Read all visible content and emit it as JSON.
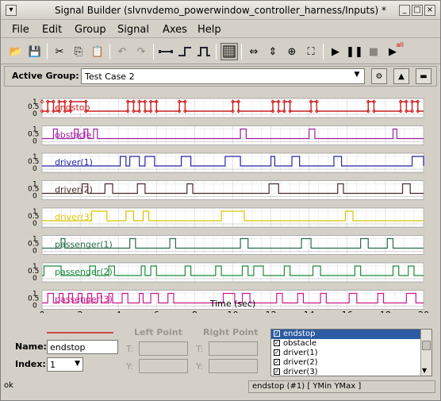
{
  "window": {
    "title": "Signal Builder (slvnvdemo_powerwindow_controller_harness/Inputs) *"
  },
  "menu": [
    "File",
    "Edit",
    "Group",
    "Signal",
    "Axes",
    "Help"
  ],
  "toolbar": {
    "icons": [
      "open-icon",
      "save-icon",
      "cut-icon",
      "copy-icon",
      "paste-icon",
      "undo-icon",
      "redo-icon",
      "segment-icon",
      "step-up-icon",
      "pulse-icon",
      "grid-icon",
      "zoom-x-icon",
      "zoom-y-icon",
      "zoom-icon",
      "fit-icon",
      "play-icon",
      "pause-icon",
      "stop-icon",
      "run-all-icon"
    ],
    "run_all_label": "all"
  },
  "group": {
    "label": "Active Group:",
    "value": "Test Case 2"
  },
  "plot": {
    "xlabel": "Time (sec)",
    "x_ticks": [
      "0",
      "2",
      "4",
      "6",
      "8",
      "10",
      "12",
      "14",
      "16",
      "18",
      "20"
    ],
    "signals": [
      {
        "name": "endstop",
        "color": "#cc1f1f",
        "steps": [
          [
            0,
            0
          ],
          [
            0.3,
            1
          ],
          [
            0.6,
            0
          ],
          [
            0.9,
            1
          ],
          [
            1.2,
            0
          ],
          [
            1.5,
            1
          ],
          [
            2.3,
            0
          ],
          [
            4.5,
            1
          ],
          [
            4.8,
            0
          ],
          [
            5.1,
            1
          ],
          [
            5.4,
            0
          ],
          [
            5.7,
            1
          ],
          [
            6,
            0
          ],
          [
            7.2,
            1
          ],
          [
            7.5,
            0
          ],
          [
            10,
            1
          ],
          [
            10.3,
            0
          ],
          [
            12.1,
            1
          ],
          [
            12.4,
            0
          ],
          [
            12.7,
            1
          ],
          [
            13,
            0
          ],
          [
            14.1,
            1
          ],
          [
            14.4,
            0
          ],
          [
            17.1,
            1
          ],
          [
            17.4,
            0
          ],
          [
            18.8,
            1
          ],
          [
            19.1,
            0
          ],
          [
            19.4,
            1
          ],
          [
            19.7,
            0
          ]
        ]
      },
      {
        "name": "obstacle",
        "color": "#a020a0",
        "steps": [
          [
            0,
            0
          ],
          [
            0.6,
            1
          ],
          [
            0.8,
            0
          ],
          [
            1.7,
            1
          ],
          [
            1.9,
            0
          ],
          [
            2.2,
            1
          ],
          [
            2.4,
            0
          ],
          [
            2.7,
            1
          ],
          [
            2.9,
            0
          ],
          [
            10.4,
            1
          ],
          [
            10.7,
            0
          ],
          [
            14,
            1
          ],
          [
            14.3,
            0
          ],
          [
            18.4,
            1
          ],
          [
            18.6,
            0
          ]
        ]
      },
      {
        "name": "driver(1)",
        "color": "#2424a8",
        "steps": [
          [
            0,
            0
          ],
          [
            4.1,
            1
          ],
          [
            4.4,
            0
          ],
          [
            4.6,
            1
          ],
          [
            5.1,
            0
          ],
          [
            5.4,
            1
          ],
          [
            5.9,
            0
          ],
          [
            7.3,
            1
          ],
          [
            7.8,
            0
          ],
          [
            9.6,
            1
          ],
          [
            10.4,
            0
          ],
          [
            12,
            1
          ],
          [
            12.2,
            0
          ],
          [
            13.1,
            1
          ],
          [
            13.5,
            0
          ],
          [
            15.3,
            1
          ],
          [
            15.7,
            0
          ],
          [
            19.4,
            1
          ],
          [
            20,
            0
          ]
        ]
      },
      {
        "name": "driver(2)",
        "color": "#4a2a2a",
        "steps": [
          [
            0,
            0
          ],
          [
            2.1,
            1
          ],
          [
            2.4,
            0
          ],
          [
            3.3,
            1
          ],
          [
            3.7,
            0
          ],
          [
            5,
            1
          ],
          [
            5.4,
            0
          ],
          [
            7.6,
            1
          ],
          [
            7.9,
            0
          ],
          [
            11.9,
            1
          ],
          [
            12.4,
            0
          ],
          [
            15.5,
            1
          ],
          [
            15.8,
            0
          ],
          [
            18.9,
            1
          ],
          [
            19.3,
            0
          ]
        ]
      },
      {
        "name": "driver(3)",
        "color": "#d8c400",
        "steps": [
          [
            0,
            0
          ],
          [
            2.6,
            1
          ],
          [
            3.4,
            0
          ],
          [
            4.4,
            1
          ],
          [
            4.8,
            0
          ],
          [
            5.3,
            1
          ],
          [
            5.6,
            0
          ],
          [
            9.4,
            1
          ],
          [
            10.6,
            0
          ],
          [
            15.9,
            1
          ],
          [
            16.3,
            0
          ]
        ]
      },
      {
        "name": "passenger(1)",
        "color": "#2a6a4a",
        "steps": [
          [
            0,
            0
          ],
          [
            1,
            1
          ],
          [
            1.2,
            0
          ],
          [
            4.6,
            1
          ],
          [
            4.9,
            0
          ],
          [
            6.7,
            1
          ],
          [
            7,
            0
          ],
          [
            10.4,
            1
          ],
          [
            10.8,
            0
          ],
          [
            13.6,
            1
          ],
          [
            14.1,
            0
          ],
          [
            16.7,
            1
          ],
          [
            17.1,
            0
          ],
          [
            18.1,
            1
          ],
          [
            18.4,
            0
          ]
        ]
      },
      {
        "name": "passenger(2)",
        "color": "#1a8a3a",
        "steps": [
          [
            0,
            0
          ],
          [
            0.1,
            1
          ],
          [
            1,
            0
          ],
          [
            2.5,
            1
          ],
          [
            2.8,
            0
          ],
          [
            3.5,
            1
          ],
          [
            3.8,
            0
          ],
          [
            5.2,
            1
          ],
          [
            5.4,
            0
          ],
          [
            5.7,
            1
          ],
          [
            6,
            0
          ],
          [
            7.5,
            1
          ],
          [
            7.8,
            0
          ],
          [
            9.1,
            1
          ],
          [
            9.4,
            0
          ],
          [
            10.5,
            1
          ],
          [
            10.8,
            0
          ],
          [
            11.1,
            1
          ],
          [
            11.6,
            0
          ],
          [
            12.7,
            1
          ],
          [
            13,
            0
          ],
          [
            14.2,
            1
          ],
          [
            14.6,
            0
          ],
          [
            16.4,
            1
          ],
          [
            16.7,
            0
          ],
          [
            18.4,
            1
          ],
          [
            18.7,
            0
          ],
          [
            19.2,
            1
          ],
          [
            19.5,
            0
          ]
        ]
      },
      {
        "name": "passenger(3)",
        "color": "#c81a8a",
        "steps": [
          [
            0,
            0
          ],
          [
            0.3,
            1
          ],
          [
            0.6,
            0
          ],
          [
            0.9,
            1
          ],
          [
            1.1,
            0
          ],
          [
            1.4,
            1
          ],
          [
            1.6,
            0
          ],
          [
            1.9,
            1
          ],
          [
            2.1,
            0
          ],
          [
            2.4,
            1
          ],
          [
            2.6,
            0
          ],
          [
            2.9,
            1
          ],
          [
            3.1,
            0
          ],
          [
            3.5,
            1
          ],
          [
            3.7,
            0
          ],
          [
            4.2,
            1
          ],
          [
            4.5,
            0
          ],
          [
            5.1,
            1
          ],
          [
            5.3,
            0
          ],
          [
            5.7,
            1
          ],
          [
            6.1,
            0
          ],
          [
            6.6,
            1
          ],
          [
            6.9,
            0
          ],
          [
            9.5,
            1
          ],
          [
            10.1,
            0
          ],
          [
            10.5,
            1
          ],
          [
            10.9,
            0
          ],
          [
            12.3,
            1
          ],
          [
            12.6,
            0
          ],
          [
            13.4,
            1
          ],
          [
            13.7,
            0
          ],
          [
            14.6,
            1
          ],
          [
            14.9,
            0
          ],
          [
            16.1,
            1
          ],
          [
            16.5,
            0
          ],
          [
            17.6,
            1
          ],
          [
            17.9,
            0
          ],
          [
            19.1,
            1
          ],
          [
            19.6,
            0
          ]
        ]
      }
    ]
  },
  "point_editor": {
    "name_label": "Name:",
    "name_value": "endstop",
    "index_label": "Index:",
    "index_value": "1",
    "left_point": "Left Point",
    "right_point": "Right Point",
    "t_label": "T:",
    "y_label": "Y:"
  },
  "signal_list": [
    "endstop",
    "obstacle",
    "driver(1)",
    "driver(2)",
    "driver(3)"
  ],
  "status": {
    "left": "ok",
    "right": "endstop (#1)  [ YMin YMax ]"
  }
}
